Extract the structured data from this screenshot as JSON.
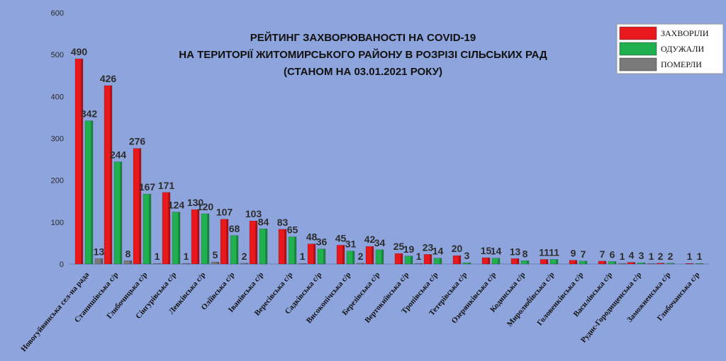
{
  "chart_data": {
    "type": "bar",
    "title_lines": [
      "РЕЙТИНГ ЗАХВОРЮВАНОСТІ НА COVID-19",
      "НА ТЕРИТОРІЇ ЖИТОМИРСЬКОГО  РАЙОНУ В РОЗРІЗІ СІЛЬСЬКИХ РАД",
      "(СТАНОМ НА 03.01.2021 РОКУ)"
    ],
    "categories": [
      "Новогуйвинська сел-на рада",
      "Станишівська с/р",
      "Глибочицька с/р",
      "Сінгурівська с/р",
      "Левківська с/р",
      "Оліївська с/р",
      "Іванівська с/р",
      "Вересівська с/р",
      "Садківська с/р",
      "Високопічська с/р",
      "Березівська с/р",
      "Вертокиївська с/р",
      "Тропівська  с/р",
      "Тетерівська  с/р",
      "Озерянківська с/р",
      "Кодинська с/р",
      "Миролюбівська  с/р",
      "Головенківська с/р",
      "Василівська с/р",
      "Руднє-Городищенська  с/р",
      "Заможненська с/р",
      "Глибочанська с/р"
    ],
    "series": [
      {
        "name": "ЗАХВОРІЛИ",
        "color": "#e8181d",
        "values": [
          490,
          426,
          276,
          171,
          130,
          107,
          103,
          83,
          48,
          45,
          42,
          25,
          23,
          20,
          15,
          13,
          11,
          9,
          7,
          4,
          2,
          1
        ]
      },
      {
        "name": "ОДУЖАЛИ",
        "color": "#20b050",
        "values": [
          342,
          244,
          167,
          124,
          120,
          68,
          84,
          65,
          36,
          31,
          34,
          19,
          14,
          3,
          14,
          8,
          11,
          7,
          6,
          3,
          2,
          1
        ]
      },
      {
        "name": "ПОМЕРЛИ",
        "color": "#7a7a7a",
        "values": [
          13,
          8,
          1,
          1,
          5,
          2,
          null,
          1,
          null,
          2,
          null,
          1,
          null,
          null,
          null,
          null,
          null,
          null,
          1,
          1,
          null,
          null
        ]
      }
    ],
    "ylim": [
      0,
      600
    ],
    "yticks": [
      "0",
      "100",
      "200",
      "300",
      "400",
      "500",
      "600"
    ],
    "legend_position": "top-right",
    "grid": false
  }
}
